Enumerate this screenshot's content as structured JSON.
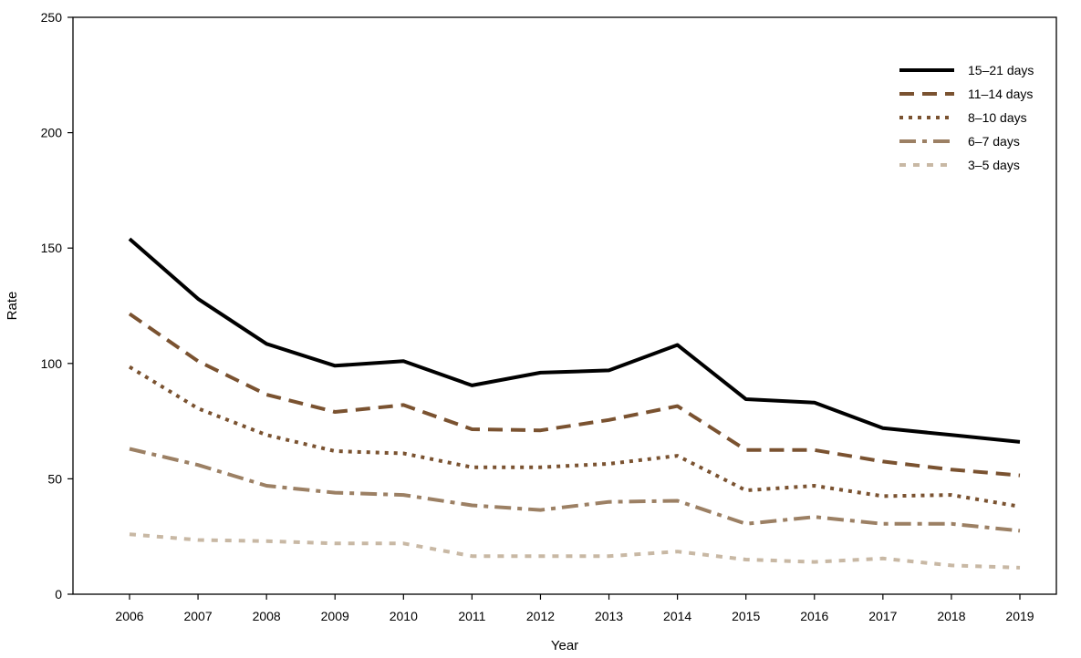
{
  "chart_data": {
    "type": "line",
    "title": "",
    "xlabel": "Year",
    "ylabel": "Rate",
    "ylim": [
      0,
      250
    ],
    "yticks": [
      0,
      50,
      100,
      150,
      200,
      250
    ],
    "grid": false,
    "legend_position": "top-right",
    "categories": [
      "2006",
      "2007",
      "2008",
      "2009",
      "2010",
      "2011",
      "2012",
      "2013",
      "2014",
      "2015",
      "2016",
      "2017",
      "2018",
      "2019"
    ],
    "series": [
      {
        "name": "15–21 days",
        "color": "#000000",
        "style": "solid",
        "values": [
          154,
          128,
          108.5,
          99,
          101,
          90.5,
          96,
          97,
          108,
          84.5,
          83,
          72,
          69,
          66
        ]
      },
      {
        "name": "11–14 days",
        "color": "#7a5230",
        "style": "dashed",
        "values": [
          121.5,
          101,
          86.5,
          79,
          82,
          71.5,
          71,
          75.5,
          81.5,
          62.5,
          62.5,
          57.5,
          54,
          51.5
        ]
      },
      {
        "name": "8–10 days",
        "color": "#7a5230",
        "style": "dotted",
        "values": [
          98.5,
          80.5,
          69,
          62,
          61,
          55,
          55,
          56.5,
          60,
          45,
          47,
          42.5,
          43,
          38
        ]
      },
      {
        "name": "6–7 days",
        "color": "#9c8064",
        "style": "dashdot",
        "values": [
          63,
          56,
          47,
          44,
          43,
          38.5,
          36.5,
          40,
          40.5,
          30.5,
          33.5,
          30.5,
          30.5,
          27.5
        ]
      },
      {
        "name": "3–5 days",
        "color": "#c8b8a4",
        "style": "dotted-wide",
        "values": [
          26,
          23.5,
          23,
          22,
          22,
          16.5,
          16.5,
          16.5,
          18.5,
          15,
          14,
          15.5,
          12.5,
          11.5
        ]
      }
    ]
  }
}
